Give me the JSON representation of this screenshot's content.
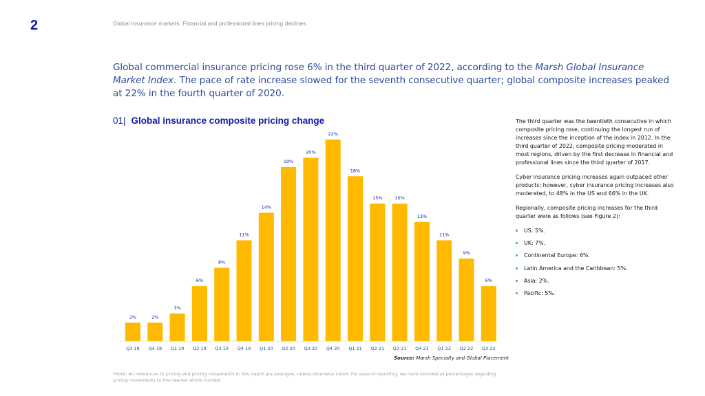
{
  "header": {
    "page_number": "2",
    "running_head": "Global insurance markets: Financial and professional lines pricing declines"
  },
  "lead": {
    "part1": "Global commercial insurance pricing rose 6% in the third quarter of 2022, according to the ",
    "italic": "Marsh Global Insurance Market Index",
    "part2": ". The pace of rate increase slowed for the seventh consecutive quarter; global composite increases peaked at 22% in the fourth quarter of 2020."
  },
  "figure": {
    "number": "01|",
    "title": "Global insurance composite pricing change",
    "source_label": "Source:",
    "source_text": " Marsh Specialty and Global Placement"
  },
  "chart_data": {
    "type": "bar",
    "title": "Global insurance composite pricing change",
    "xlabel": "",
    "ylabel": "",
    "categories": [
      "Q3 18",
      "Q4 18",
      "Q1 19",
      "Q2 19",
      "Q3 19",
      "Q4 19",
      "Q1 20",
      "Q2 20",
      "Q3 20",
      "Q4 20",
      "Q1 21",
      "Q2 21",
      "Q3 21",
      "Q4 21",
      "Q1 22",
      "Q2 22",
      "Q3 22"
    ],
    "values": [
      2,
      2,
      3,
      6,
      8,
      11,
      14,
      19,
      20,
      22,
      18,
      15,
      15,
      13,
      11,
      9,
      6
    ],
    "data_labels": [
      "2%",
      "2%",
      "3%",
      "6%",
      "8%",
      "11%",
      "14%",
      "19%",
      "20%",
      "22%",
      "18%",
      "15%",
      "15%",
      "13%",
      "11%",
      "9%",
      "6%"
    ],
    "unit": "%",
    "ylim": [
      0,
      22
    ],
    "grid": false,
    "legend": "none",
    "colors": {
      "bar": "#ffb900",
      "label": "#0f1aa8",
      "axis": "#e6e8ec"
    }
  },
  "note": "*Note: All references to pricing and pricing movements in this report are averages, unless otherwise noted. For ease of reporting, we have rounded all percentages regarding pricing movements to the nearest whole number.",
  "sidebar": {
    "paragraphs": [
      "The third quarter was the twentieth consecutive in which composite pricing rose, continuing the longest run of increases since the inception of the index in 2012. In the third quarter of 2022, composite pricing moderated in most regions, driven by the first decrease in financial and professional lines since the third quarter of 2017.",
      "Cyber insurance pricing increases again outpaced other products; however, cyber insurance pricing increases also moderated, to 48% in the US and 66% in the UK.",
      "Regionally, composite pricing increases for the third quarter were as follows (see Figure 2):"
    ],
    "regions": [
      "US: 5%.",
      "UK: 7%.",
      "Continental Europe: 6%.",
      "Latin America and the Caribbean: 5%.",
      "Asia: 2%.",
      "Pacific: 5%."
    ]
  }
}
